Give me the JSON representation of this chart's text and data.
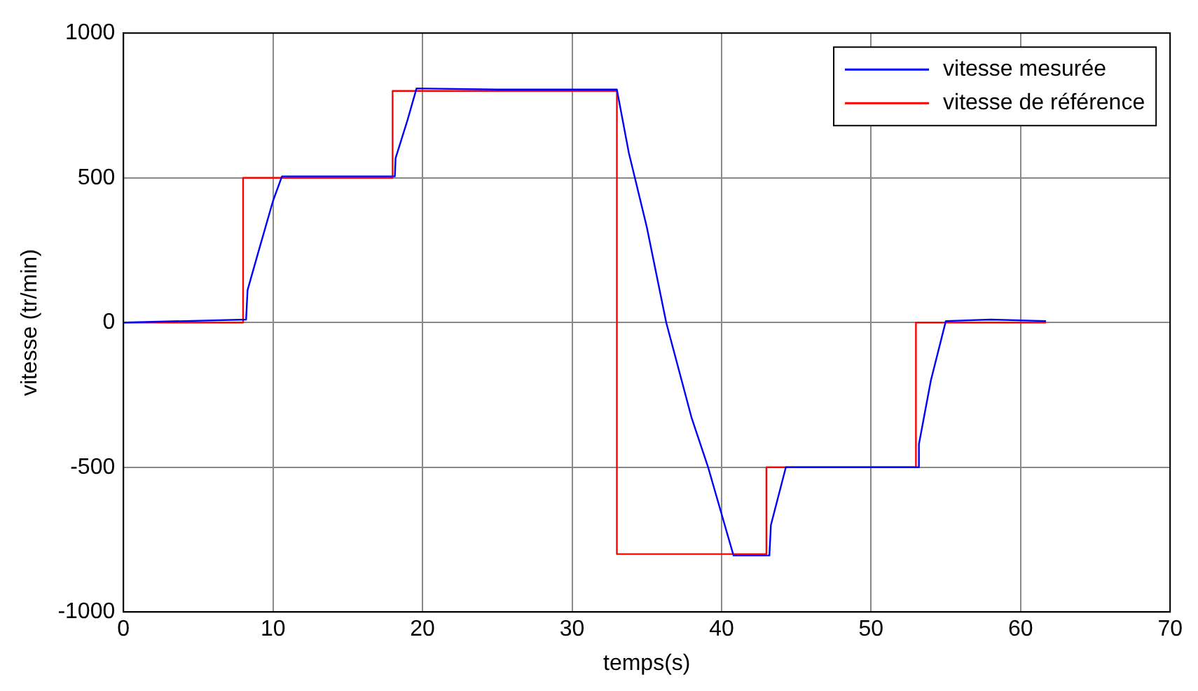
{
  "chart_data": {
    "type": "line",
    "xlabel": "temps(s)",
    "ylabel": "vitesse (tr/min)",
    "xlim": [
      0,
      70
    ],
    "xticks": [
      0,
      10,
      20,
      30,
      40,
      50,
      60,
      70
    ],
    "ylim": [
      -1000,
      1000
    ],
    "yticks": [
      -1000,
      -500,
      0,
      500,
      1000
    ],
    "grid": true,
    "legend": "top right",
    "marker": "none",
    "line_style": "solid",
    "series": [
      {
        "name": "vitesse mesurée",
        "color": "#0000ff",
        "x": [
          0,
          8.2,
          8.3,
          9,
          10,
          10.6,
          18.15,
          18.2,
          19,
          19.6,
          25,
          33,
          33.8,
          35,
          36.3,
          38,
          39.1,
          40.8,
          43.2,
          43.3,
          44.3,
          53.15,
          53.2,
          54,
          55,
          58,
          61.7
        ],
        "values": [
          0,
          10,
          112,
          240,
          420,
          505,
          505,
          568,
          700,
          809,
          805,
          805,
          586,
          330,
          0,
          -330,
          -500,
          -805,
          -805,
          -700,
          -500,
          -500,
          -420,
          -200,
          5,
          10,
          5
        ]
      },
      {
        "name": "vitesse de référence",
        "color": "#ff0000",
        "type": "step",
        "x": [
          0,
          8,
          18,
          33,
          43,
          53,
          61.7
        ],
        "values": [
          0,
          500,
          800,
          -800,
          -500,
          0,
          0
        ]
      }
    ]
  }
}
